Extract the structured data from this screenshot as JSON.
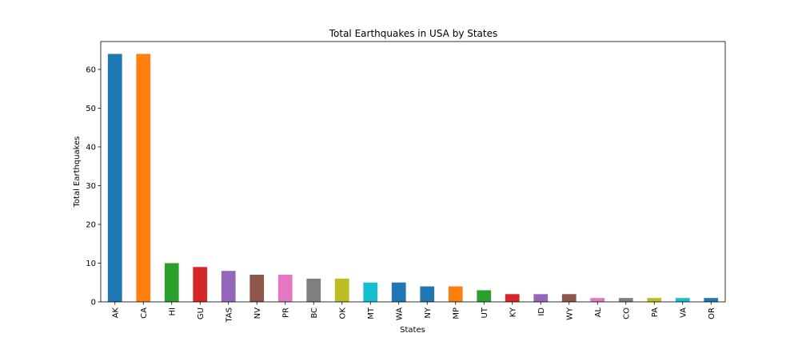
{
  "chart_data": {
    "type": "bar",
    "title": "Total Earthquakes in USA by States",
    "xlabel": "States",
    "ylabel": "Total Earthquakes",
    "categories": [
      "AK",
      "CA",
      "HI",
      "GU",
      "TAS",
      "NV",
      "PR",
      "BC",
      "OK",
      "MT",
      "WA",
      "NY",
      "MP",
      "UT",
      "KY",
      "ID",
      "WY",
      "AL",
      "CO",
      "PA",
      "VA",
      "OR"
    ],
    "values": [
      64,
      64,
      10,
      9,
      8,
      7,
      7,
      6,
      6,
      5,
      5,
      4,
      4,
      3,
      2,
      2,
      2,
      1,
      1,
      1,
      1,
      1
    ],
    "colors": [
      "#1f77b4",
      "#ff7f0e",
      "#2ca02c",
      "#d62728",
      "#9467bd",
      "#8c564b",
      "#e377c2",
      "#7f7f7f",
      "#bcbd22",
      "#17becf",
      "#1f77b4",
      "#1f77b4",
      "#ff7f0e",
      "#2ca02c",
      "#d62728",
      "#9467bd",
      "#8c564b",
      "#e377c2",
      "#7f7f7f",
      "#bcbd22",
      "#17becf",
      "#1f77b4"
    ],
    "ylim": [
      0,
      67.2
    ],
    "yticks": [
      0,
      10,
      20,
      30,
      40,
      50,
      60
    ],
    "grid": false,
    "legend": false
  }
}
